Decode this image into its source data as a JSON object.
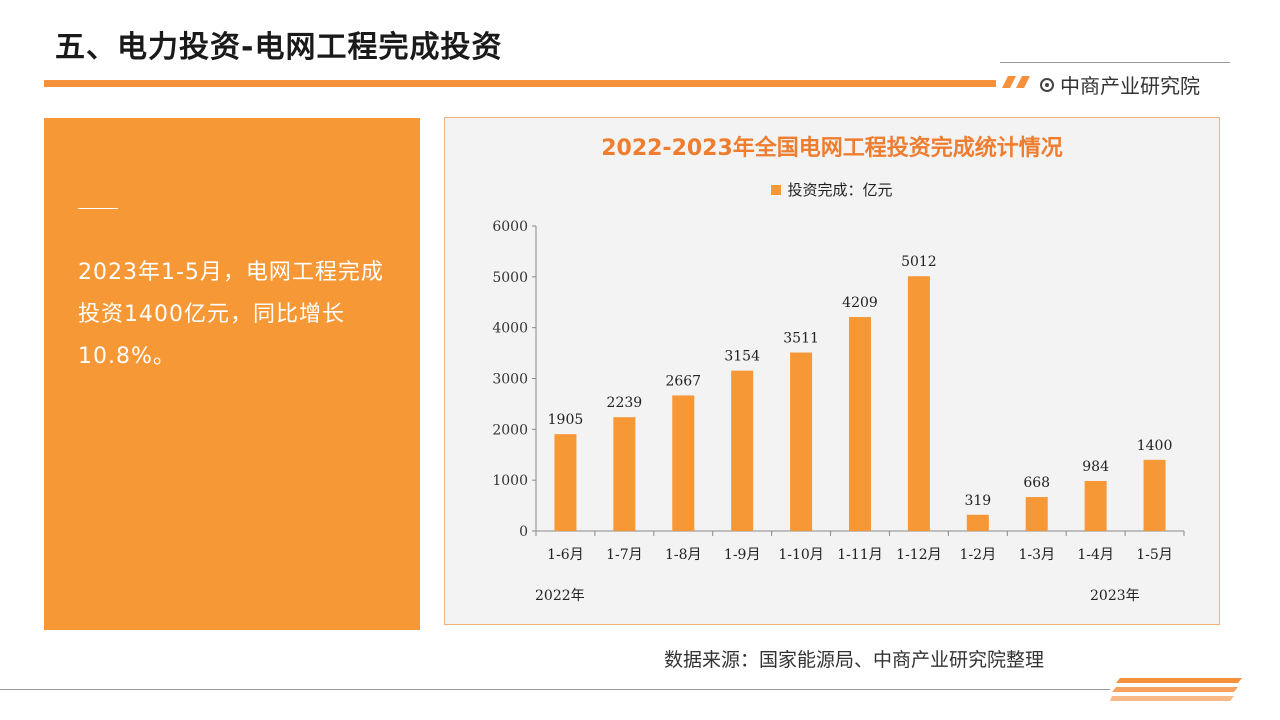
{
  "page": {
    "title": "五、电力投资-电网工程完成投资",
    "brand": "中商产业研究院"
  },
  "summary": {
    "text": "2023年1-5月，电网工程完成投资1400亿元，同比增长10.8%。"
  },
  "chart_data": {
    "type": "bar",
    "title": "2022-2023年全国电网工程投资完成统计情况",
    "categories": [
      "1-6月",
      "1-7月",
      "1-8月",
      "1-9月",
      "1-10月",
      "1-11月",
      "1-12月",
      "1-2月",
      "1-3月",
      "1-4月",
      "1-5月"
    ],
    "series": [
      {
        "name": "投资完成：亿元",
        "values": [
          1905,
          2239,
          2667,
          3154,
          3511,
          4209,
          5012,
          319,
          668,
          984,
          1400
        ]
      }
    ],
    "year_labels": [
      "2022年",
      "2023年"
    ],
    "ylim": [
      0,
      6000
    ],
    "yticks": [
      0,
      1000,
      2000,
      3000,
      4000,
      5000,
      6000
    ],
    "bar_color": "#f79837",
    "legend_position": "top",
    "grid": false
  },
  "source": "数据来源：国家能源局、中商产业研究院整理",
  "colors": {
    "accent": "#f5913a",
    "panel": "#f79837",
    "title": "#ee7d2f"
  }
}
